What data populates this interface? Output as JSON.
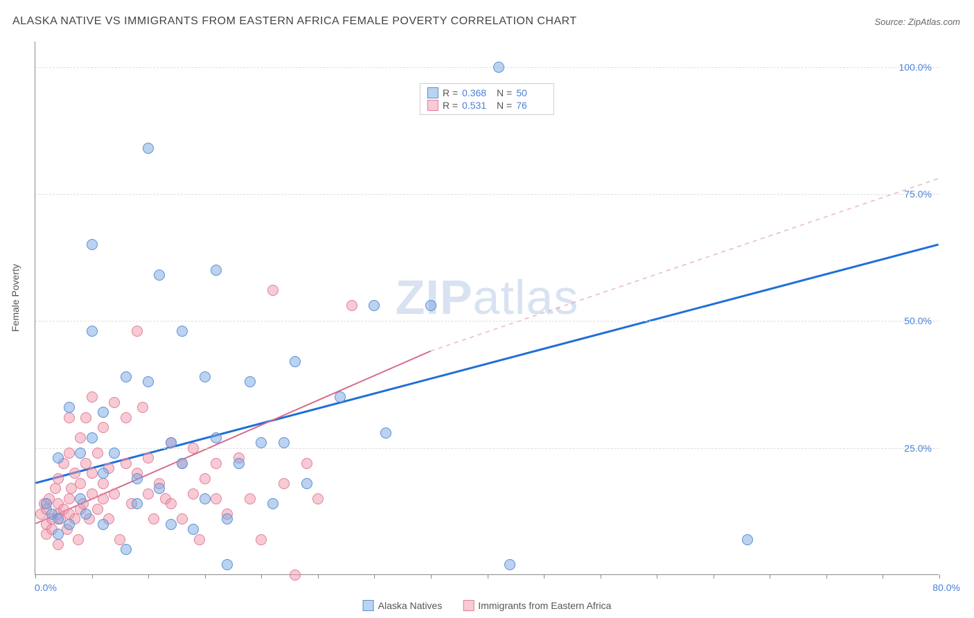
{
  "title": "ALASKA NATIVE VS IMMIGRANTS FROM EASTERN AFRICA FEMALE POVERTY CORRELATION CHART",
  "source_label": "Source: ZipAtlas.com",
  "y_axis_label": "Female Poverty",
  "watermark": {
    "bold": "ZIP",
    "light": "atlas"
  },
  "axes": {
    "x_min": 0,
    "x_max": 80,
    "y_min": 0,
    "y_max": 105,
    "x_origin_label": "0.0%",
    "x_end_label": "80.0%",
    "x_ticks": [
      0,
      5,
      10,
      15,
      20,
      25,
      30,
      35,
      40,
      45,
      50,
      55,
      60,
      65,
      70,
      75,
      80
    ],
    "y_gridlines": [
      25,
      50,
      75,
      100
    ],
    "y_tick_labels": [
      "25.0%",
      "50.0%",
      "75.0%",
      "100.0%"
    ]
  },
  "colors": {
    "series_a_fill": "rgba(120,165,225,0.5)",
    "series_a_stroke": "#5a8fd0",
    "series_b_fill": "rgba(240,150,170,0.5)",
    "series_b_stroke": "#e07f99",
    "trend_a": "#1f6fd8",
    "trend_b": "#d86a8a",
    "trend_b_ext": "rgba(216,106,138,0.5)",
    "axis_label": "#4a7fd8"
  },
  "point_radius": 8,
  "stats": [
    {
      "series": "a",
      "R": "0.368",
      "N": "50"
    },
    {
      "series": "b",
      "R": "0.531",
      "N": "76"
    }
  ],
  "legend": [
    {
      "series": "a",
      "label": "Alaska Natives"
    },
    {
      "series": "b",
      "label": "Immigrants from Eastern Africa"
    }
  ],
  "trend_lines": {
    "a": {
      "x1": 0,
      "y1": 18,
      "x2": 80,
      "y2": 65
    },
    "b": {
      "x1": 0,
      "y1": 10,
      "x2": 35,
      "y2": 44,
      "ext_x2": 80,
      "ext_y2": 78
    }
  },
  "series_a_points": [
    [
      1,
      14
    ],
    [
      1.5,
      12
    ],
    [
      2,
      8
    ],
    [
      2,
      23
    ],
    [
      3,
      10
    ],
    [
      3,
      33
    ],
    [
      4,
      15
    ],
    [
      4,
      24
    ],
    [
      4.5,
      12
    ],
    [
      5,
      48
    ],
    [
      5,
      65
    ],
    [
      5,
      27
    ],
    [
      6,
      20
    ],
    [
      6,
      10
    ],
    [
      6,
      32
    ],
    [
      7,
      24
    ],
    [
      8,
      5
    ],
    [
      8,
      39
    ],
    [
      9,
      19
    ],
    [
      9,
      14
    ],
    [
      10,
      38
    ],
    [
      10,
      84
    ],
    [
      11,
      17
    ],
    [
      11,
      59
    ],
    [
      12,
      26
    ],
    [
      12,
      10
    ],
    [
      13,
      22
    ],
    [
      13,
      48
    ],
    [
      14,
      9
    ],
    [
      15,
      15
    ],
    [
      15,
      39
    ],
    [
      16,
      27
    ],
    [
      16,
      60
    ],
    [
      17,
      11
    ],
    [
      17,
      2
    ],
    [
      18,
      22
    ],
    [
      19,
      38
    ],
    [
      20,
      26
    ],
    [
      21,
      14
    ],
    [
      22,
      26
    ],
    [
      23,
      42
    ],
    [
      24,
      18
    ],
    [
      27,
      35
    ],
    [
      30,
      53
    ],
    [
      31,
      28
    ],
    [
      35,
      53
    ],
    [
      42,
      2
    ],
    [
      41,
      100
    ],
    [
      63,
      7
    ],
    [
      2,
      11
    ]
  ],
  "series_b_points": [
    [
      0.5,
      12
    ],
    [
      0.8,
      14
    ],
    [
      1,
      10
    ],
    [
      1,
      13
    ],
    [
      1,
      8
    ],
    [
      1.2,
      15
    ],
    [
      1.5,
      11
    ],
    [
      1.5,
      9
    ],
    [
      1.8,
      17
    ],
    [
      2,
      12
    ],
    [
      2,
      14
    ],
    [
      2,
      6
    ],
    [
      2,
      19
    ],
    [
      2.2,
      11
    ],
    [
      2.5,
      13
    ],
    [
      2.5,
      22
    ],
    [
      2.8,
      9
    ],
    [
      3,
      15
    ],
    [
      3,
      24
    ],
    [
      3,
      31
    ],
    [
      3,
      12
    ],
    [
      3.2,
      17
    ],
    [
      3.5,
      11
    ],
    [
      3.5,
      20
    ],
    [
      3.8,
      7
    ],
    [
      4,
      13
    ],
    [
      4,
      27
    ],
    [
      4,
      18
    ],
    [
      4.2,
      14
    ],
    [
      4.5,
      22
    ],
    [
      4.5,
      31
    ],
    [
      4.8,
      11
    ],
    [
      5,
      16
    ],
    [
      5,
      20
    ],
    [
      5,
      35
    ],
    [
      5.5,
      13
    ],
    [
      5.5,
      24
    ],
    [
      6,
      15
    ],
    [
      6,
      29
    ],
    [
      6,
      18
    ],
    [
      6.5,
      11
    ],
    [
      6.5,
      21
    ],
    [
      7,
      34
    ],
    [
      7,
      16
    ],
    [
      7.5,
      7
    ],
    [
      8,
      31
    ],
    [
      8,
      22
    ],
    [
      8.5,
      14
    ],
    [
      9,
      48
    ],
    [
      9,
      20
    ],
    [
      9.5,
      33
    ],
    [
      10,
      16
    ],
    [
      10,
      23
    ],
    [
      10.5,
      11
    ],
    [
      11,
      18
    ],
    [
      11.5,
      15
    ],
    [
      12,
      26
    ],
    [
      12,
      14
    ],
    [
      13,
      22
    ],
    [
      13,
      11
    ],
    [
      14,
      25
    ],
    [
      14,
      16
    ],
    [
      14.5,
      7
    ],
    [
      15,
      19
    ],
    [
      16,
      22
    ],
    [
      16,
      15
    ],
    [
      17,
      12
    ],
    [
      18,
      23
    ],
    [
      19,
      15
    ],
    [
      20,
      7
    ],
    [
      21,
      56
    ],
    [
      22,
      18
    ],
    [
      23,
      0
    ],
    [
      24,
      22
    ],
    [
      25,
      15
    ],
    [
      28,
      53
    ]
  ]
}
